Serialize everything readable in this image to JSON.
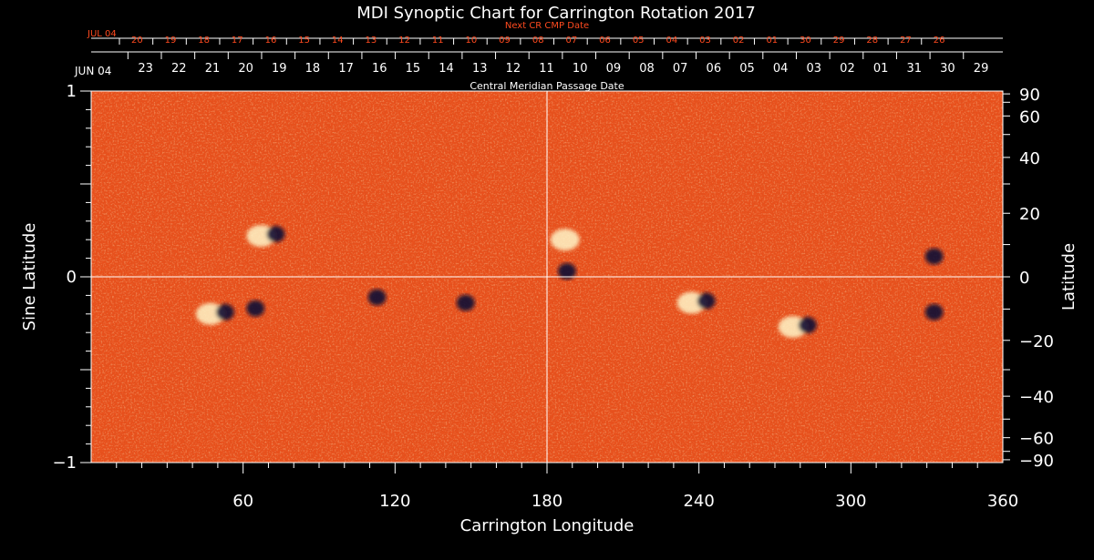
{
  "colors": {
    "background": "#000000",
    "axis": "#ffffff",
    "next_cr_text": "#ff4a1f",
    "map_base": "#e8501c",
    "positive_polarity": "#fff6c8",
    "negative_polarity": "#120c33"
  },
  "chart_data": {
    "type": "heatmap",
    "title": "MDI Synoptic Chart for Carrington Rotation 2017",
    "xlabel": "Carrington Longitude",
    "ylabel_left": "Sine Latitude",
    "ylabel_right": "Latitude",
    "xlim": [
      0,
      360
    ],
    "ylim_sine": [
      -1,
      1
    ],
    "grid": "crosshair at longitude 180 and sine latitude 0",
    "x_ticks": [
      "60",
      "120",
      "180",
      "240",
      "300",
      "360"
    ],
    "x_tick_values": [
      60,
      120,
      180,
      240,
      300,
      360
    ],
    "y_left_ticks": [
      "1",
      "0",
      "−1"
    ],
    "y_left_tick_values": [
      1,
      0,
      -1
    ],
    "y_right_ticks": [
      "90",
      "60",
      "40",
      "20",
      "0",
      "−20",
      "−40",
      "−60",
      "−90"
    ],
    "y_right_tick_values": [
      90,
      60,
      40,
      20,
      0,
      -20,
      -40,
      -60,
      -90
    ],
    "cmp_axis": {
      "label": "Central Meridian Passage Date",
      "start_label": "JUN 04",
      "dates": [
        "23",
        "22",
        "21",
        "20",
        "19",
        "18",
        "17",
        "16",
        "15",
        "14",
        "13",
        "12",
        "11",
        "10",
        "09",
        "08",
        "07",
        "06",
        "05",
        "04",
        "03",
        "02",
        "01",
        "31",
        "30",
        "29"
      ]
    },
    "next_cr_axis": {
      "label": "Next CR CMP Date",
      "start_label": "JUL 04",
      "dates": [
        "20",
        "19",
        "18",
        "17",
        "16",
        "15",
        "14",
        "13",
        "12",
        "11",
        "10",
        "09",
        "08",
        "07",
        "06",
        "05",
        "04",
        "03",
        "02",
        "01",
        "30",
        "29",
        "28",
        "27",
        "26"
      ]
    },
    "active_regions": [
      {
        "lon": 70,
        "sinlat": 0.22,
        "polarity": "mixed"
      },
      {
        "lon": 50,
        "sinlat": -0.2,
        "polarity": "mixed"
      },
      {
        "lon": 62,
        "sinlat": -0.18,
        "polarity": "negative"
      },
      {
        "lon": 110,
        "sinlat": -0.12,
        "polarity": "negative"
      },
      {
        "lon": 145,
        "sinlat": -0.15,
        "polarity": "negative"
      },
      {
        "lon": 185,
        "sinlat": 0.02,
        "polarity": "negative"
      },
      {
        "lon": 190,
        "sinlat": 0.2,
        "polarity": "positive"
      },
      {
        "lon": 240,
        "sinlat": -0.14,
        "polarity": "mixed"
      },
      {
        "lon": 280,
        "sinlat": -0.27,
        "polarity": "mixed"
      },
      {
        "lon": 330,
        "sinlat": -0.2,
        "polarity": "negative"
      },
      {
        "lon": 330,
        "sinlat": 0.1,
        "polarity": "negative"
      }
    ]
  }
}
